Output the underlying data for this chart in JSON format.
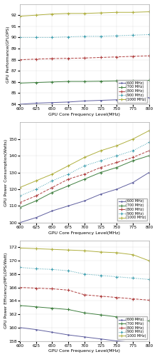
{
  "x": [
    600,
    625,
    650,
    675,
    700,
    725,
    750,
    775,
    800
  ],
  "perf": {
    "600MHz": [
      84.0,
      84.1,
      84.15,
      84.2,
      84.3,
      84.35,
      84.4,
      84.5,
      84.6
    ],
    "700MHz": [
      85.9,
      85.95,
      86.0,
      86.05,
      86.05,
      86.07,
      86.1,
      86.12,
      86.15
    ],
    "800MHz": [
      88.0,
      88.05,
      88.1,
      88.12,
      88.15,
      88.2,
      88.25,
      88.3,
      88.35
    ],
    "900MHz": [
      90.0,
      90.0,
      90.0,
      90.05,
      90.1,
      90.1,
      90.15,
      90.2,
      90.25
    ],
    "1000MHz": [
      91.9,
      92.0,
      92.1,
      92.15,
      92.15,
      92.2,
      92.25,
      92.25,
      92.3
    ]
  },
  "perf_ylim": [
    84,
    93
  ],
  "perf_yticks": [
    84,
    85,
    86,
    87,
    88,
    89,
    90,
    91,
    92
  ],
  "perf_ylabel": "GPU Performance(GFLOPS)",
  "power": {
    "600MHz": [
      100,
      103,
      107,
      110,
      113,
      117,
      120,
      124,
      130
    ],
    "700MHz": [
      109,
      113,
      118,
      122,
      126,
      130,
      133,
      137,
      140
    ],
    "800MHz": [
      112,
      116,
      121,
      126,
      129,
      133,
      136,
      139,
      143
    ],
    "900MHz": [
      116,
      120,
      125,
      129,
      134,
      137,
      140,
      143,
      148
    ],
    "1000MHz": [
      121,
      125,
      129,
      134,
      139,
      143,
      146,
      150,
      155
    ]
  },
  "power_ylim": [
    100,
    160
  ],
  "power_yticks": [
    100,
    110,
    120,
    130,
    140,
    150
  ],
  "power_ylabel": "GPU Power Consumption(Watts)",
  "eff": {
    "600MHz": [
      160.0,
      159.7,
      159.3,
      158.9,
      158.6,
      158.3,
      158.0,
      157.8,
      157.5
    ],
    "700MHz": [
      163.3,
      163.1,
      162.9,
      162.7,
      162.2,
      161.9,
      161.6,
      161.3,
      161.0
    ],
    "800MHz": [
      166.0,
      165.9,
      165.8,
      165.6,
      164.9,
      164.7,
      164.5,
      164.3,
      164.1
    ],
    "900MHz": [
      169.0,
      168.8,
      168.7,
      168.5,
      168.0,
      167.8,
      167.6,
      167.4,
      167.2
    ],
    "1000MHz": [
      171.9,
      171.8,
      171.7,
      171.6,
      171.5,
      171.3,
      171.2,
      170.9,
      170.0
    ]
  },
  "eff_ylim": [
    158,
    173
  ],
  "eff_yticks": [
    158,
    160,
    162,
    164,
    166,
    168,
    170,
    172
  ],
  "eff_ylabel": "GPU Power Efficiency(MFLOPS/Watt)",
  "xlabel": "GPU Core Frequency Level(MHz)",
  "xticks": [
    600,
    625,
    650,
    675,
    700,
    725,
    750,
    775,
    800
  ],
  "colors": {
    "600MHz": "#6060a0",
    "700MHz": "#408040",
    "800MHz": "#b04040",
    "900MHz": "#40a0b0",
    "1000MHz": "#b0b040"
  },
  "linestyles": {
    "600MHz": "-",
    "700MHz": "-",
    "800MHz": "--",
    "900MHz": ":",
    "1000MHz": "-"
  },
  "markers": {
    "600MHz": ".",
    "700MHz": "+",
    "800MHz": "+",
    "900MHz": "+",
    "1000MHz": "+"
  },
  "markersize": {
    "600MHz": 2.0,
    "700MHz": 3.0,
    "800MHz": 3.0,
    "900MHz": 3.0,
    "1000MHz": 3.0
  }
}
